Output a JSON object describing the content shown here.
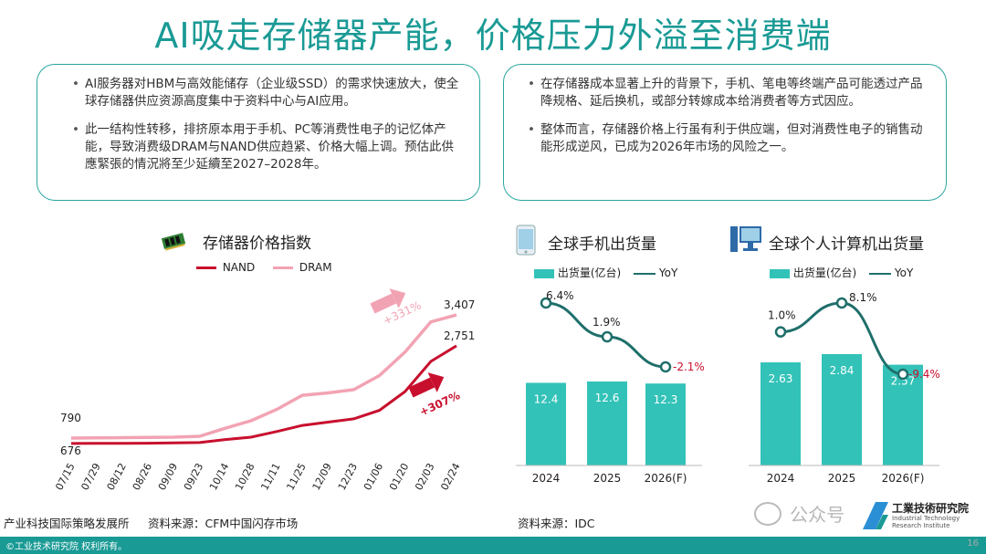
{
  "title": "AI吸走存储器产能，价格压力外溢至消费端",
  "left_box": {
    "bullets": [
      "AI服务器对HBM与高效能储存（企业级SSD）的需求快速放大，使全球存储器供应资源高度集中于资料中心与AI应用。",
      "此一结构性转移，排挤原本用于手机、PC等消费性电子的记忆体产能，导致消费级DRAM与NAND供应趋紧、价格大幅上调。预估此供應緊張的情況將至少延續至2027–2028年。"
    ]
  },
  "right_box": {
    "bullets": [
      "在存储器成本显著上升的背景下，手机、笔电等终端产品可能透过产品降规格、延后换机，或部分转嫁成本给消费者等方式因应。",
      "整体而言，存储器价格上行虽有利于供应端，但对消费性电子的销售动能形成逆风，已成为2026年市场的风险之一。"
    ]
  },
  "colors": {
    "teal": "#1a9a95",
    "nand": "#c8102e",
    "dram": "#f2a3b3",
    "bar": "#33c2b8",
    "line": "#1f6f6b"
  },
  "chart_data": [
    {
      "type": "line",
      "title": "存储器价格指数",
      "legend": [
        "NAND",
        "DRAM"
      ],
      "categories": [
        "07/15",
        "07/29",
        "08/12",
        "08/26",
        "09/09",
        "09/23",
        "10/14",
        "10/28",
        "11/11",
        "11/25",
        "12/09",
        "12/23",
        "01/06",
        "01/20",
        "02/03",
        "02/24"
      ],
      "series": [
        {
          "name": "NAND",
          "values": [
            676,
            678,
            680,
            682,
            688,
            695,
            760,
            810,
            930,
            1060,
            1130,
            1200,
            1380,
            1780,
            2420,
            2751
          ]
        },
        {
          "name": "DRAM",
          "values": [
            790,
            795,
            800,
            805,
            810,
            830,
            1000,
            1160,
            1400,
            1700,
            1750,
            1820,
            2120,
            2620,
            3260,
            3407
          ]
        }
      ],
      "start_labels": {
        "DRAM": "790",
        "NAND": "676"
      },
      "end_labels": {
        "DRAM": "3,407",
        "NAND": "2,751"
      },
      "annotations": {
        "DRAM": "+331%",
        "NAND": "+307%"
      },
      "ylim": [
        500,
        3700
      ]
    },
    {
      "type": "bar",
      "title": "全球手机出货量",
      "legend": [
        "出货量(亿台)",
        "YoY"
      ],
      "categories": [
        "2024",
        "2025",
        "2026(F)"
      ],
      "values": [
        12.4,
        12.6,
        12.3
      ],
      "value_labels": [
        "12.4",
        "12.6",
        "12.3"
      ],
      "yoy": [
        6.4,
        1.9,
        -2.1
      ],
      "yoy_labels": [
        "6.4%",
        "1.9%",
        "-2.1%"
      ],
      "source": "资料来源：IDC"
    },
    {
      "type": "bar",
      "title": "全球个人计算机出货量",
      "legend": [
        "出货量(亿台)",
        "YoY"
      ],
      "categories": [
        "2024",
        "2025",
        "2026(F)"
      ],
      "values": [
        2.63,
        2.84,
        2.57
      ],
      "value_labels": [
        "2.63",
        "2.84",
        "2.57"
      ],
      "yoy": [
        1.0,
        8.1,
        -9.4
      ],
      "yoy_labels": [
        "1.0%",
        "8.1%",
        "-9.4%"
      ]
    }
  ],
  "footer": {
    "org": "产业科技国际策略发展所",
    "source": "资料来源：CFM中国闪存市场",
    "copyright": "©工业技术研究院  权利所有。",
    "page": "16",
    "watermark": "公众号",
    "logo_title": "工業技術研究院",
    "logo_sub1": "Industrial Technology",
    "logo_sub2": "Research Institute"
  },
  "icons": [
    "memory-chip-icon",
    "phone-icon",
    "computer-icon",
    "up-arrow-icon",
    "wechat-icon"
  ]
}
